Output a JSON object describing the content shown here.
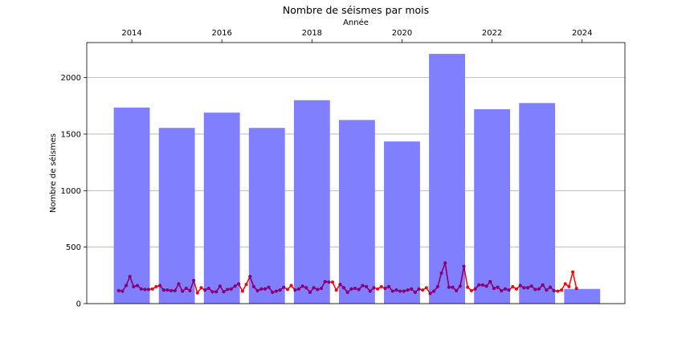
{
  "chart_data": {
    "type": "bar",
    "title": "Nombre de séismes par mois",
    "xlabel": "Année",
    "ylabel": "Nombre de séismes",
    "x_axis_position": "top",
    "xlim": [
      2013.0,
      2024.95
    ],
    "ylim": [
      0,
      2310
    ],
    "yticks": [
      0,
      500,
      1000,
      1500,
      2000
    ],
    "xticks": [
      2014,
      2016,
      2018,
      2020,
      2022,
      2024
    ],
    "grid": "horizontal",
    "legend": "none",
    "colors": {
      "bars": "#8080ff",
      "line_red": "#ff0000",
      "line_purple": "#800080"
    },
    "bars": {
      "x": [
        2014,
        2015,
        2016,
        2017,
        2018,
        2019,
        2020,
        2021,
        2022,
        2023,
        2024
      ],
      "values": [
        1735,
        1555,
        1690,
        1555,
        1800,
        1625,
        1435,
        2210,
        1720,
        1775,
        130
      ]
    },
    "monthly_series": {
      "start": "2013-09",
      "values": [
        115,
        110,
        160,
        240,
        150,
        160,
        130,
        125,
        125,
        130,
        150,
        160,
        120,
        120,
        115,
        115,
        175,
        110,
        135,
        115,
        205,
        95,
        140,
        120,
        135,
        105,
        105,
        155,
        105,
        125,
        130,
        155,
        175,
        110,
        170,
        240,
        150,
        115,
        130,
        130,
        145,
        100,
        110,
        120,
        145,
        125,
        160,
        120,
        130,
        155,
        140,
        100,
        140,
        125,
        135,
        195,
        190,
        190,
        120,
        170,
        140,
        100,
        130,
        135,
        125,
        160,
        150,
        110,
        140,
        130,
        150,
        135,
        150,
        110,
        120,
        110,
        110,
        120,
        130,
        100,
        130,
        120,
        140,
        90,
        110,
        150,
        270,
        360,
        145,
        145,
        115,
        155,
        330,
        145,
        115,
        130,
        165,
        165,
        155,
        195,
        135,
        145,
        115,
        130,
        120,
        150,
        130,
        160,
        140,
        140,
        155,
        125,
        130,
        165,
        120,
        145,
        115,
        110,
        120,
        175,
        150,
        280,
        135
      ]
    }
  }
}
